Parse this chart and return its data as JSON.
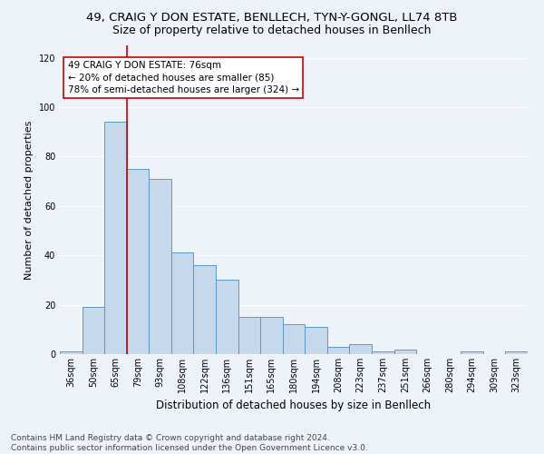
{
  "title1": "49, CRAIG Y DON ESTATE, BENLLECH, TYN-Y-GONGL, LL74 8TB",
  "title2": "Size of property relative to detached houses in Benllech",
  "xlabel": "Distribution of detached houses by size in Benllech",
  "ylabel": "Number of detached properties",
  "categories": [
    "36sqm",
    "50sqm",
    "65sqm",
    "79sqm",
    "93sqm",
    "108sqm",
    "122sqm",
    "136sqm",
    "151sqm",
    "165sqm",
    "180sqm",
    "194sqm",
    "208sqm",
    "223sqm",
    "237sqm",
    "251sqm",
    "266sqm",
    "280sqm",
    "294sqm",
    "309sqm",
    "323sqm"
  ],
  "values": [
    1,
    19,
    94,
    75,
    71,
    41,
    36,
    30,
    15,
    15,
    12,
    11,
    3,
    4,
    1,
    2,
    0,
    0,
    1,
    0,
    1
  ],
  "bar_color": "#c5d8ec",
  "bar_edge_color": "#5a9ac5",
  "vline_x_index": 2,
  "vline_color": "#cc0000",
  "annotation_text": "49 CRAIG Y DON ESTATE: 76sqm\n← 20% of detached houses are smaller (85)\n78% of semi-detached houses are larger (324) →",
  "annotation_box_color": "#ffffff",
  "annotation_box_edge_color": "#cc0000",
  "ylim": [
    0,
    125
  ],
  "yticks": [
    0,
    20,
    40,
    60,
    80,
    100,
    120
  ],
  "footer_text": "Contains HM Land Registry data © Crown copyright and database right 2024.\nContains public sector information licensed under the Open Government Licence v3.0.",
  "background_color": "#eef2f9",
  "grid_color": "#ffffff",
  "title1_fontsize": 9.5,
  "title2_fontsize": 9,
  "xlabel_fontsize": 8.5,
  "ylabel_fontsize": 8,
  "tick_fontsize": 7,
  "annotation_fontsize": 7.5,
  "footer_fontsize": 6.5
}
